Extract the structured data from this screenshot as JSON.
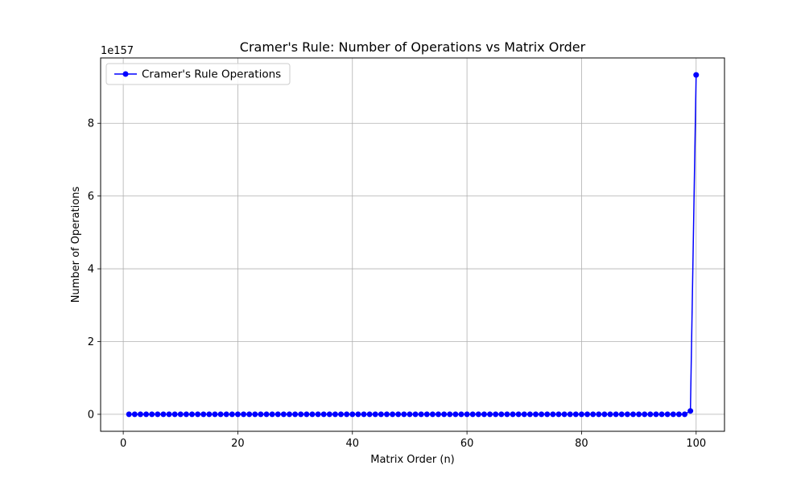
{
  "chart_data": {
    "type": "line",
    "title": "Cramer's Rule: Number of Operations vs Matrix Order",
    "xlabel": "Matrix Order (n)",
    "ylabel": "Number of Operations",
    "y_scale_label": "1e157",
    "xlim": [
      -3.95,
      104.95
    ],
    "ylim": [
      -0.4665,
      9.7965
    ],
    "x_ticks": [
      0,
      20,
      40,
      60,
      80,
      100
    ],
    "y_ticks": [
      0,
      2,
      4,
      6,
      8
    ],
    "x_tick_labels": [
      "0",
      "20",
      "40",
      "60",
      "80",
      "100"
    ],
    "y_tick_labels": [
      "0",
      "2",
      "4",
      "6",
      "8"
    ],
    "grid": true,
    "legend_position": "upper-left",
    "series": [
      {
        "name": "Cramer's Rule Operations",
        "color": "#0000ff",
        "marker": "circle",
        "x_start": 1,
        "x_end": 100,
        "values_note_scale": "1e157",
        "values_tail": {
          "99": 0.0934,
          "100": 9.33
        }
      }
    ]
  }
}
